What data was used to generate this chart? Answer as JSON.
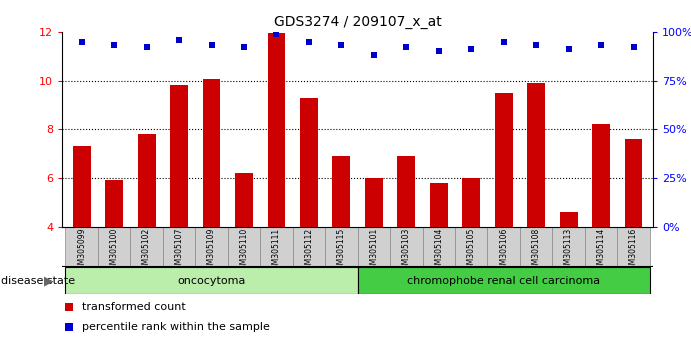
{
  "title": "GDS3274 / 209107_x_at",
  "samples": [
    "GSM305099",
    "GSM305100",
    "GSM305102",
    "GSM305107",
    "GSM305109",
    "GSM305110",
    "GSM305111",
    "GSM305112",
    "GSM305115",
    "GSM305101",
    "GSM305103",
    "GSM305104",
    "GSM305105",
    "GSM305106",
    "GSM305108",
    "GSM305113",
    "GSM305114",
    "GSM305116"
  ],
  "bar_values": [
    7.3,
    5.9,
    7.8,
    9.8,
    10.05,
    6.2,
    11.95,
    9.3,
    6.9,
    6.0,
    6.9,
    5.8,
    6.0,
    9.5,
    9.9,
    4.6,
    8.2,
    7.6
  ],
  "dot_values": [
    95,
    93,
    92,
    96,
    93,
    92,
    99,
    95,
    93,
    88,
    92,
    90,
    91,
    95,
    93,
    91,
    93,
    92
  ],
  "bar_color": "#cc0000",
  "dot_color": "#0000cc",
  "ylim_left": [
    4,
    12
  ],
  "ylim_right": [
    0,
    100
  ],
  "yticks_left": [
    4,
    6,
    8,
    10,
    12
  ],
  "yticks_right": [
    0,
    25,
    50,
    75,
    100
  ],
  "ytick_labels_right": [
    "0%",
    "25%",
    "50%",
    "75%",
    "100%"
  ],
  "groups": [
    {
      "label": "oncocytoma",
      "start": 0,
      "end": 9,
      "color": "#bbeeaa"
    },
    {
      "label": "chromophobe renal cell carcinoma",
      "start": 9,
      "end": 18,
      "color": "#44cc44"
    }
  ],
  "disease_state_label": "disease state",
  "legend_bar_label": "transformed count",
  "legend_dot_label": "percentile rank within the sample",
  "background_color": "#ffffff",
  "xticklabel_bg": "#d0d0d0"
}
